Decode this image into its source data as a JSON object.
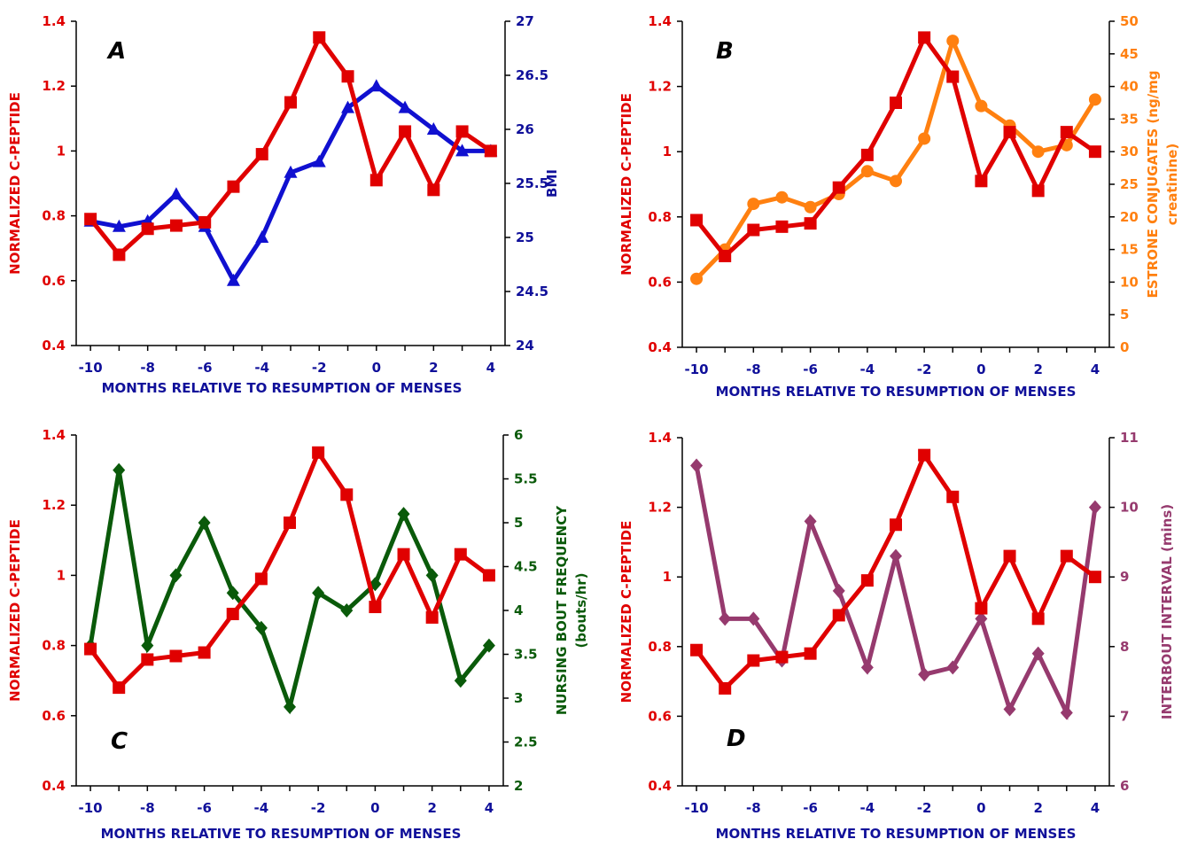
{
  "colors": {
    "cpeptide": "#e00000",
    "bmi": "#1010d0",
    "estrone": "#ff8010",
    "nursing": "#0a5a0a",
    "interbout": "#963a6e",
    "axis_text": "#10109a"
  },
  "chart_data": [
    {
      "type": "line",
      "panel_label": "A",
      "xlabel": "MONTHS RELATIVE TO RESUMPTION OF MENSES",
      "xticks": [
        "-10",
        "-8",
        "-6",
        "-4",
        "-2",
        "0",
        "2",
        "4"
      ],
      "xlim": [
        -10.5,
        4.5
      ],
      "ylabel_left": "NORMALIZED C-PEPTIDE",
      "ylim_left": [
        0.4,
        1.4
      ],
      "yticks_left": [
        "0.4",
        "0.6",
        "0.8",
        "1",
        "1.2",
        "1.4"
      ],
      "ylabel_right": "BMI",
      "ylim_right": [
        24,
        27
      ],
      "yticks_right": [
        "24",
        "24.5",
        "25",
        "25.5",
        "26",
        "26.5",
        "27"
      ],
      "grid": false,
      "series": [
        {
          "axis": "left",
          "marker": "square",
          "color": "#e00000",
          "x": [
            -10,
            -9,
            -8,
            -7,
            -6,
            -5,
            -4,
            -3,
            -2,
            -1,
            0,
            1,
            2,
            3,
            4
          ],
          "values": [
            0.79,
            0.68,
            0.76,
            0.77,
            0.78,
            0.89,
            0.99,
            1.15,
            1.35,
            1.23,
            0.91,
            1.06,
            0.88,
            1.06,
            1.0
          ]
        },
        {
          "axis": "right",
          "marker": "triangle",
          "color": "#1010d0",
          "x": [
            -10,
            -9,
            -8,
            -7,
            -6,
            -5,
            -4,
            -3,
            -2,
            -1,
            0,
            1,
            2,
            3,
            4
          ],
          "values": [
            25.15,
            25.1,
            25.15,
            25.4,
            25.1,
            24.6,
            25.0,
            25.6,
            25.7,
            26.2,
            26.4,
            26.2,
            26.0,
            25.8,
            25.8
          ]
        }
      ]
    },
    {
      "type": "line",
      "panel_label": "B",
      "xlabel": "MONTHS RELATIVE TO RESUMPTION OF MENSES",
      "xticks": [
        "-10",
        "-8",
        "-6",
        "-4",
        "-2",
        "0",
        "2",
        "4"
      ],
      "xlim": [
        -10.5,
        4.5
      ],
      "ylabel_left": "NORMALIZED C-PEPTIDE",
      "ylim_left": [
        0.4,
        1.4
      ],
      "yticks_left": [
        "0.4",
        "0.6",
        "0.8",
        "1",
        "1.2",
        "1.4"
      ],
      "ylabel_right": "ESTRONE CONJUGATES (ng/mg",
      "ylabel_right_2": "creatinine)",
      "ylim_right": [
        0,
        50
      ],
      "yticks_right": [
        "0",
        "5",
        "10",
        "15",
        "20",
        "25",
        "30",
        "35",
        "40",
        "45",
        "50"
      ],
      "grid": false,
      "series": [
        {
          "axis": "left",
          "marker": "square",
          "color": "#e00000",
          "x": [
            -10,
            -9,
            -8,
            -7,
            -6,
            -5,
            -4,
            -3,
            -2,
            -1,
            0,
            1,
            2,
            3,
            4
          ],
          "values": [
            0.79,
            0.68,
            0.76,
            0.77,
            0.78,
            0.89,
            0.99,
            1.15,
            1.35,
            1.23,
            0.91,
            1.06,
            0.88,
            1.06,
            1.0
          ]
        },
        {
          "axis": "right",
          "marker": "circle",
          "color": "#ff8010",
          "x": [
            -10,
            -9,
            -8,
            -7,
            -6,
            -5,
            -4,
            -3,
            -2,
            -1,
            0,
            1,
            2,
            3,
            4
          ],
          "values": [
            10.5,
            15,
            22,
            23,
            21.5,
            23.5,
            27,
            25.5,
            32,
            47,
            37,
            34,
            30,
            31,
            38
          ]
        }
      ]
    },
    {
      "type": "line",
      "panel_label": "C",
      "xlabel": "MONTHS RELATIVE TO RESUMPTION OF MENSES",
      "xticks": [
        "-10",
        "-8",
        "-6",
        "-4",
        "-2",
        "0",
        "2",
        "4"
      ],
      "xlim": [
        -10.5,
        4.5
      ],
      "ylabel_left": "NORMALIZED C-PEPTIDE",
      "ylim_left": [
        0.4,
        1.4
      ],
      "yticks_left": [
        "0.4",
        "0.6",
        "0.8",
        "1",
        "1.2",
        "1.4"
      ],
      "ylabel_right": "NURSING BOUT FREQUENCY",
      "ylabel_right_2": "(bouts/hr)",
      "ylim_right": [
        2,
        6
      ],
      "yticks_right": [
        "2",
        "2.5",
        "3",
        "3.5",
        "4",
        "4.5",
        "5",
        "5.5",
        "6"
      ],
      "grid": false,
      "series": [
        {
          "axis": "left",
          "marker": "square",
          "color": "#e00000",
          "x": [
            -10,
            -9,
            -8,
            -7,
            -6,
            -5,
            -4,
            -3,
            -2,
            -1,
            0,
            1,
            2,
            3,
            4
          ],
          "values": [
            0.79,
            0.68,
            0.76,
            0.77,
            0.78,
            0.89,
            0.99,
            1.15,
            1.35,
            1.23,
            0.91,
            1.06,
            0.88,
            1.06,
            1.0
          ]
        },
        {
          "axis": "right",
          "marker": "diamond",
          "color": "#0a5a0a",
          "x": [
            -10,
            -9,
            -8,
            -7,
            -6,
            -5,
            -4,
            -3,
            -2,
            -1,
            0,
            1,
            2,
            3,
            4
          ],
          "values": [
            3.6,
            5.6,
            3.6,
            4.4,
            5.0,
            4.2,
            3.8,
            2.9,
            4.2,
            4.0,
            4.3,
            5.1,
            4.4,
            3.2,
            3.6
          ]
        }
      ]
    },
    {
      "type": "line",
      "panel_label": "D",
      "xlabel": "MONTHS RELATIVE TO RESUMPTION OF MENSES",
      "xticks": [
        "-10",
        "-8",
        "-6",
        "-4",
        "-2",
        "0",
        "2",
        "4"
      ],
      "xlim": [
        -10.5,
        4.5
      ],
      "ylabel_left": "NORMALIZED C-PEPTIDE",
      "ylim_left": [
        0.4,
        1.4
      ],
      "yticks_left": [
        "0.4",
        "0.6",
        "0.8",
        "1",
        "1.2",
        "1.4"
      ],
      "ylabel_right": "INTERBOUT INTERVAL (mins)",
      "ylim_right": [
        6,
        11
      ],
      "yticks_right": [
        "6",
        "7",
        "8",
        "9",
        "10",
        "11"
      ],
      "grid": false,
      "series": [
        {
          "axis": "left",
          "marker": "square",
          "color": "#e00000",
          "x": [
            -10,
            -9,
            -8,
            -7,
            -6,
            -5,
            -4,
            -3,
            -2,
            -1,
            0,
            1,
            2,
            3,
            4
          ],
          "values": [
            0.79,
            0.68,
            0.76,
            0.77,
            0.78,
            0.89,
            0.99,
            1.15,
            1.35,
            1.23,
            0.91,
            1.06,
            0.88,
            1.06,
            1.0
          ]
        },
        {
          "axis": "right",
          "marker": "diamond",
          "color": "#963a6e",
          "x": [
            -10,
            -9,
            -8,
            -7,
            -6,
            -5,
            -4,
            -3,
            -2,
            -1,
            0,
            1,
            2,
            3,
            4
          ],
          "values": [
            10.6,
            8.4,
            8.4,
            7.8,
            9.8,
            8.8,
            7.7,
            9.3,
            7.6,
            7.7,
            8.4,
            7.1,
            7.9,
            7.05,
            10.0
          ]
        }
      ]
    }
  ]
}
